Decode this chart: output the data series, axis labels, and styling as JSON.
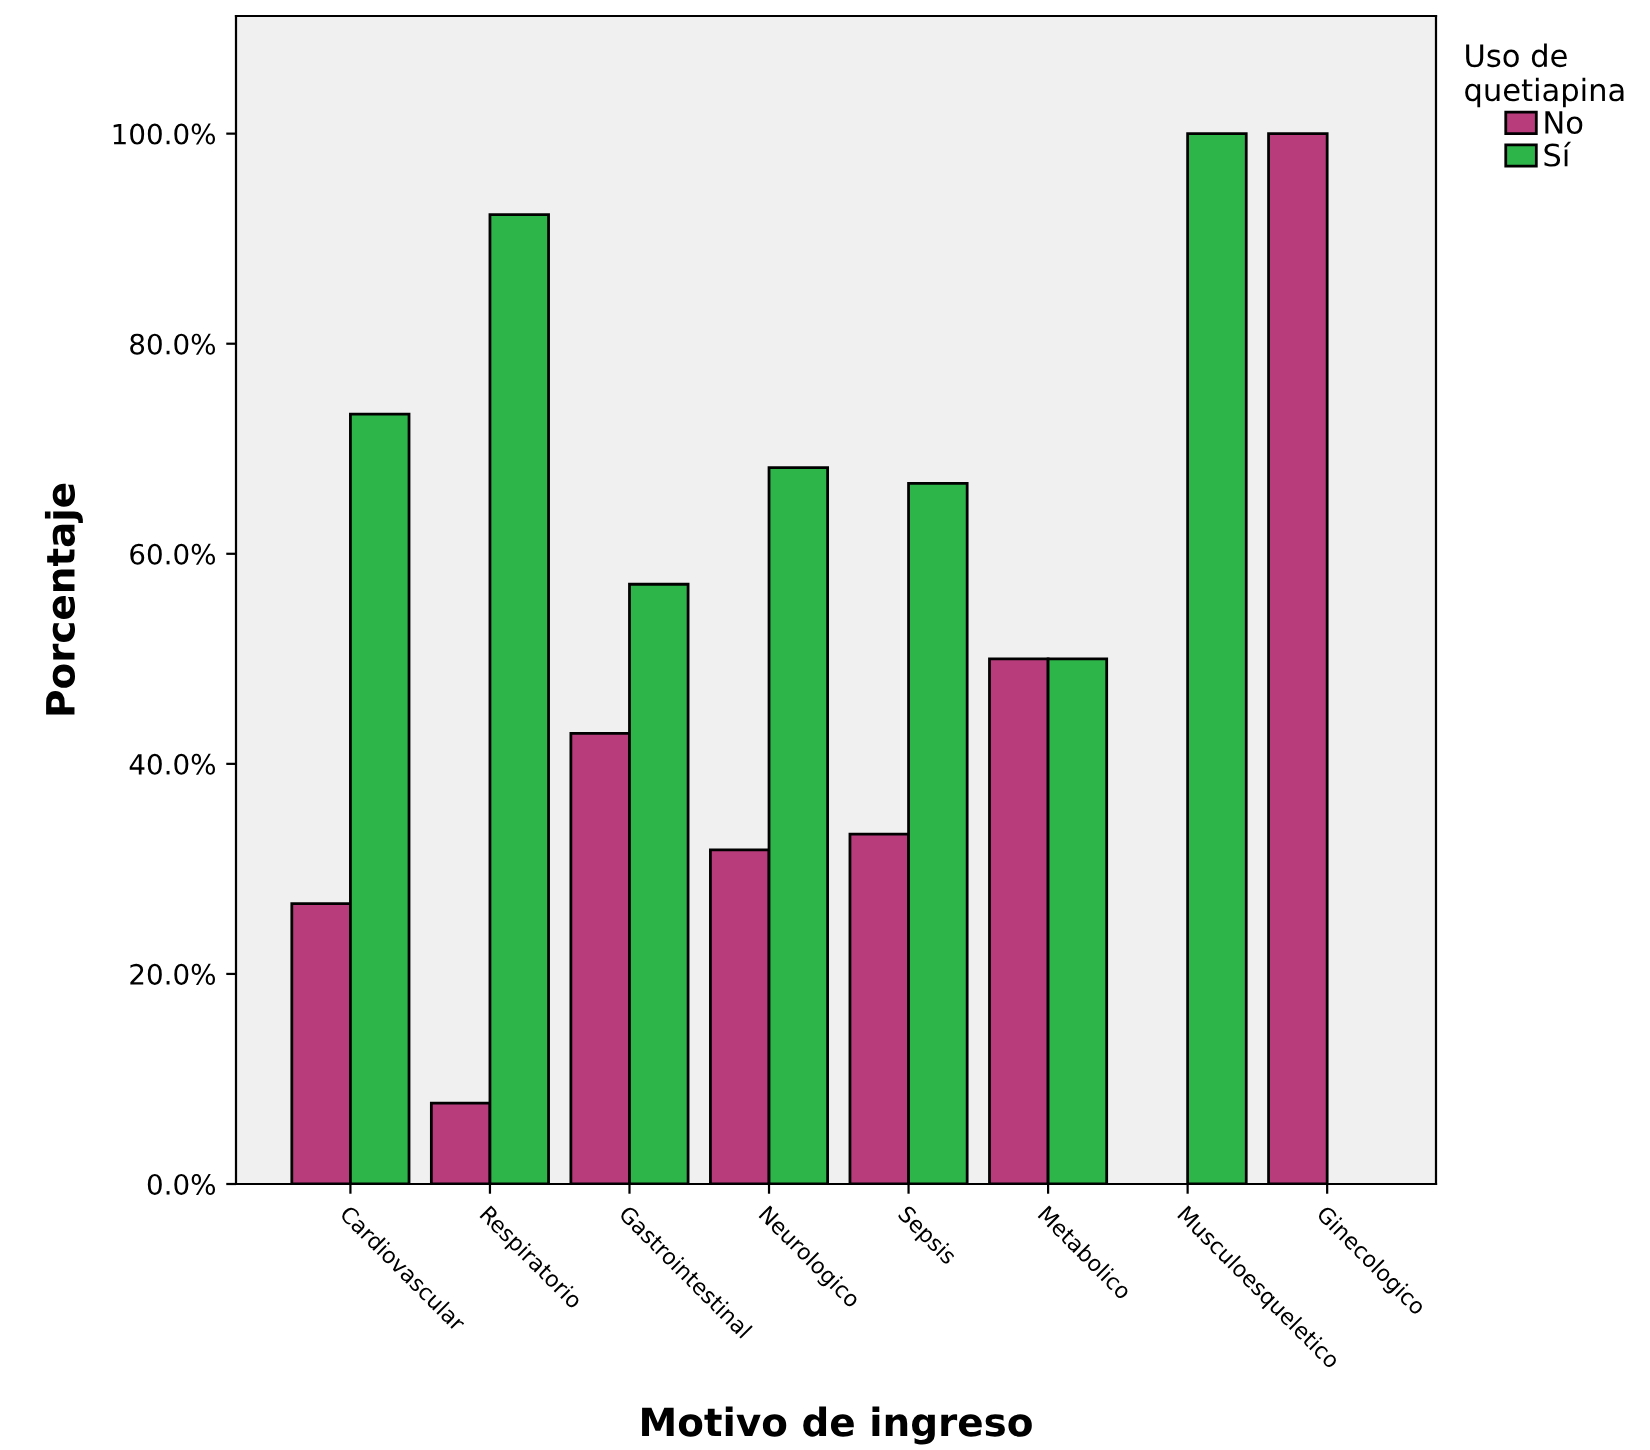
{
  "chart_data": {
    "type": "bar",
    "xlabel": "Motivo de ingreso",
    "ylabel": "Porcentaje",
    "legend_title": "Uso de\nquetiapina",
    "categories": [
      "Cardiovascular",
      "Respiratorio",
      "Gastrointestinal",
      "Neurologico",
      "Sepsis",
      "Metabolico",
      "Musculoesqueletico",
      "Ginecologico"
    ],
    "series": [
      {
        "name": "No",
        "color": "#b83c7c",
        "values": [
          26.7,
          7.7,
          42.9,
          31.8,
          33.3,
          50.0,
          0,
          100.0
        ]
      },
      {
        "name": "Sí",
        "color": "#2eb54a",
        "values": [
          73.3,
          92.3,
          57.1,
          68.2,
          66.7,
          50.0,
          100.0,
          0
        ]
      }
    ],
    "ylim": [
      0,
      111.2
    ],
    "yticks": [
      {
        "value": 0,
        "label": "0.0%"
      },
      {
        "value": 20,
        "label": "20.0%"
      },
      {
        "value": 40,
        "label": "40.0%"
      },
      {
        "value": 60,
        "label": "60.0%"
      },
      {
        "value": 80,
        "label": "80.0%"
      },
      {
        "value": 100,
        "label": "100.0%"
      }
    ],
    "grid": false,
    "legend": "top right"
  }
}
